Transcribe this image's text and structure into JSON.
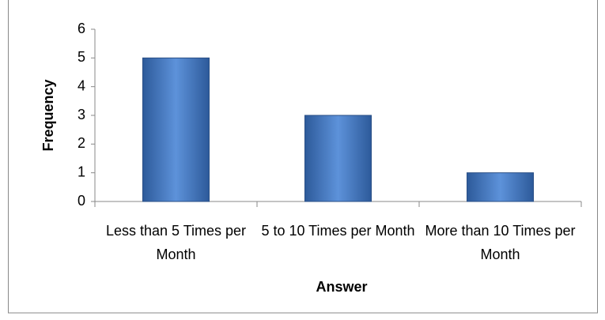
{
  "chart_data": {
    "type": "bar",
    "x_label": "Answer",
    "y_label": "Frequency",
    "categories": [
      "Less than 5 Times per Month",
      "5 to 10 Times per Month",
      "More than 10 Times per Month"
    ],
    "values": [
      5,
      3,
      1
    ],
    "color": "#4a7cc4",
    "ylim": [
      0,
      6
    ],
    "yticks": [
      0,
      1,
      2,
      3,
      4,
      5,
      6
    ],
    "grid": false
  }
}
